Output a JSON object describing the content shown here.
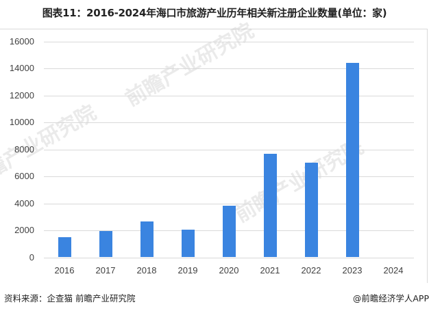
{
  "title": "图表11：2016-2024年海口市旅游产业历年相关新注册企业数量(单位：家)",
  "footer": {
    "source": "资料来源：企查猫 前瞻产业研究院",
    "credit": "@前瞻经济学人APP"
  },
  "watermark": "前瞻产业研究院",
  "colors": {
    "bar": "#3a84e0",
    "grid": "#d9d9d9",
    "axis_text": "#404040"
  },
  "chart_data": {
    "type": "bar",
    "title": "图表11：2016-2024年海口市旅游产业历年相关新注册企业数量(单位：家)",
    "xlabel": "",
    "ylabel": "",
    "unit": "家",
    "categories": [
      "2016",
      "2017",
      "2018",
      "2019",
      "2020",
      "2021",
      "2022",
      "2023",
      "2024"
    ],
    "values": [
      1520,
      1930,
      2670,
      2060,
      3840,
      7690,
      7030,
      14440,
      0
    ],
    "ylim": [
      0,
      16000
    ],
    "yticks": [
      "0",
      "2000",
      "4000",
      "6000",
      "8000",
      "10000",
      "12000",
      "14000",
      "16000"
    ],
    "grid": true,
    "legend": null
  }
}
